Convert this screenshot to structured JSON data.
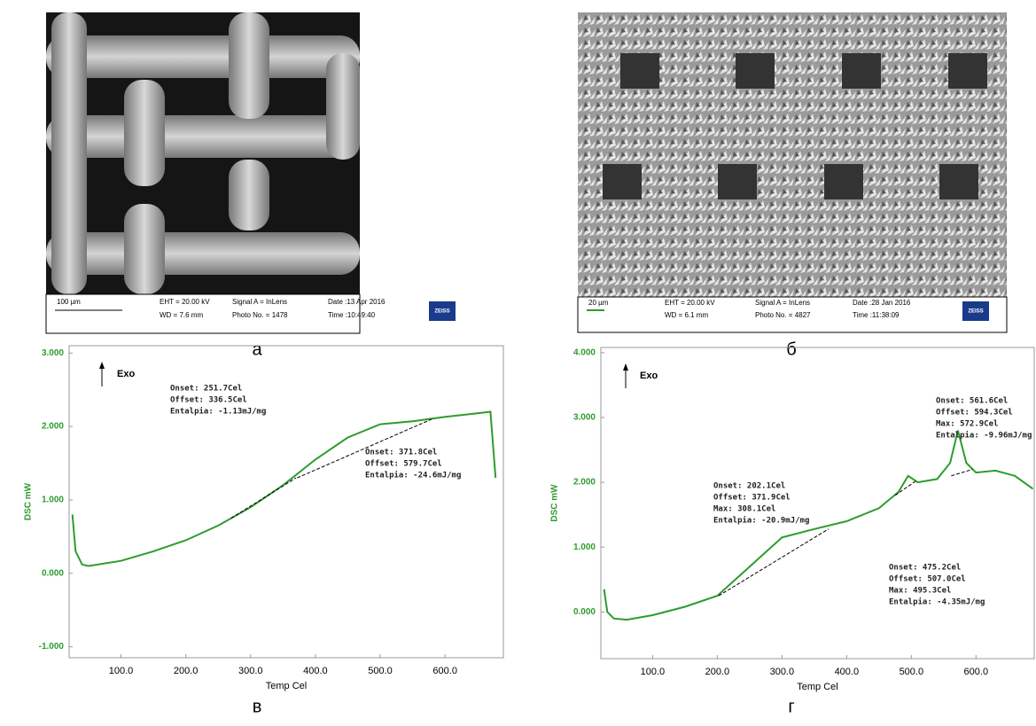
{
  "images": [
    {
      "caption": "а",
      "scale_bar": "100 µm",
      "eht": "EHT = 20.00 kV",
      "wd": "WD = 7.6 mm",
      "signal": "Signal A = InLens",
      "photo": "Photo No. = 1478",
      "date": "Date :13 Apr 2016",
      "time": "Time :10:49:40",
      "logo": "ZEISS"
    },
    {
      "caption": "б",
      "scale_bar": "20 µm",
      "eht": "EHT = 20.00 kV",
      "wd": "WD = 6.1 mm",
      "signal": "Signal A = InLens",
      "photo": "Photo No. = 4827",
      "date": "Date :28 Jan 2016",
      "time": "Time :11:38:09",
      "logo": "ZEISS"
    }
  ],
  "chart_data": [
    {
      "type": "line",
      "caption": "в",
      "x_label": "Temp Cel",
      "y_label": "DSC mW",
      "marker": "Exo",
      "color": "#2e9b2e",
      "xlim": [
        20,
        690
      ],
      "ylim": [
        -1.15,
        3.1
      ],
      "xticks": [
        {
          "value": 100,
          "label": "100.0"
        },
        {
          "value": 200,
          "label": "200.0"
        },
        {
          "value": 300,
          "label": "300.0"
        },
        {
          "value": 400,
          "label": "400.0"
        },
        {
          "value": 500,
          "label": "500.0"
        },
        {
          "value": 600,
          "label": "600.0"
        }
      ],
      "yticks": [
        {
          "value": 3,
          "label": "3.000"
        },
        {
          "value": 2,
          "label": "2.000"
        },
        {
          "value": 1,
          "label": "1.000"
        },
        {
          "value": 0,
          "label": "0.000"
        },
        {
          "value": -1,
          "label": "-1.000"
        }
      ],
      "x": [
        25,
        30,
        40,
        50,
        100,
        150,
        200,
        250,
        300,
        350,
        400,
        450,
        500,
        550,
        600,
        650,
        670,
        678
      ],
      "values": [
        0.8,
        0.3,
        0.12,
        0.1,
        0.17,
        0.3,
        0.45,
        0.65,
        0.9,
        1.2,
        1.55,
        1.85,
        2.03,
        2.07,
        2.13,
        2.18,
        2.2,
        1.3
      ],
      "baselines": [
        {
          "x": [
            270,
            370
          ],
          "values": [
            0.75,
            1.3
          ]
        },
        {
          "x": [
            371.8,
            579.7
          ],
          "values": [
            1.3,
            2.1
          ]
        }
      ],
      "annotations": [
        [
          "Onset: 251.7Cel",
          "Offset: 336.5Cel",
          "Entalpia: -1.13mJ/mg"
        ],
        [
          "Onset: 371.8Cel",
          "Offset: 579.7Cel",
          "Entalpia: -24.6mJ/mg"
        ]
      ]
    },
    {
      "type": "line",
      "caption": "г",
      "x_label": "Temp Cel",
      "y_label": "DSC mW",
      "marker": "Exo",
      "color": "#2e9b2e",
      "xlim": [
        20,
        690
      ],
      "ylim": [
        -0.72,
        4.08
      ],
      "xticks": [
        {
          "value": 100,
          "label": "100.0"
        },
        {
          "value": 200,
          "label": "200.0"
        },
        {
          "value": 300,
          "label": "300.0"
        },
        {
          "value": 400,
          "label": "400.0"
        },
        {
          "value": 500,
          "label": "500.0"
        },
        {
          "value": 600,
          "label": "600.0"
        }
      ],
      "yticks": [
        {
          "value": 4,
          "label": "4.000"
        },
        {
          "value": 3,
          "label": "3.000"
        },
        {
          "value": 2,
          "label": "2.000"
        },
        {
          "value": 1,
          "label": "1.000"
        },
        {
          "value": 0,
          "label": "0.000"
        }
      ],
      "x": [
        25,
        30,
        40,
        60,
        100,
        150,
        200,
        250,
        300,
        350,
        400,
        450,
        480,
        495,
        510,
        540,
        560,
        572,
        585,
        600,
        630,
        660,
        688
      ],
      "values": [
        0.35,
        0,
        -0.1,
        -0.12,
        -0.05,
        0.08,
        0.25,
        0.7,
        1.15,
        1.28,
        1.4,
        1.6,
        1.85,
        2.1,
        2.0,
        2.05,
        2.3,
        2.8,
        2.3,
        2.15,
        2.18,
        2.1,
        1.9
      ],
      "baselines": [
        {
          "x": [
            202.1,
            371.9
          ],
          "values": [
            0.25,
            1.28
          ]
        },
        {
          "x": [
            475.2,
            507.0
          ],
          "values": [
            1.8,
            2.02
          ]
        },
        {
          "x": [
            561.6,
            594.3
          ],
          "values": [
            2.1,
            2.2
          ]
        }
      ],
      "annotations": [
        [
          "Onset: 202.1Cel",
          "Offset: 371.9Cel",
          "Max: 308.1Cel",
          "Entalpia: -20.9mJ/mg"
        ],
        [
          "Onset: 475.2Cel",
          "Offset: 507.0Cel",
          "Max: 495.3Cel",
          "Entalpia: -4.35mJ/mg"
        ],
        [
          "Onset: 561.6Cel",
          "Offset: 594.3Cel",
          "Max: 572.9Cel",
          "Entalpia: -9.96mJ/mg"
        ]
      ]
    }
  ]
}
